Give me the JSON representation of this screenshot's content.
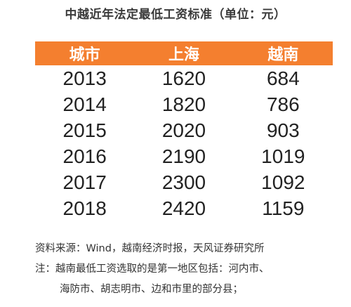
{
  "chart_data": {
    "type": "table",
    "title": "中越近年法定最低工资标准（单位：元）",
    "columns": [
      "城市",
      "上海",
      "越南"
    ],
    "rows": [
      [
        "2013",
        "1620",
        "684"
      ],
      [
        "2014",
        "1820",
        "786"
      ],
      [
        "2015",
        "2020",
        "903"
      ],
      [
        "2016",
        "2190",
        "1019"
      ],
      [
        "2017",
        "2300",
        "1092"
      ],
      [
        "2018",
        "2420",
        "1159"
      ]
    ],
    "header_color": "#f47f2f"
  },
  "notes": {
    "source": "资料来源：Wind，越南经济时报，天风证券研究所",
    "note_line1": "注：越南最低工资选取的是第一地区包括：河内市、",
    "note_line2": "海防市、胡志明市、边和市里的部分县；"
  }
}
